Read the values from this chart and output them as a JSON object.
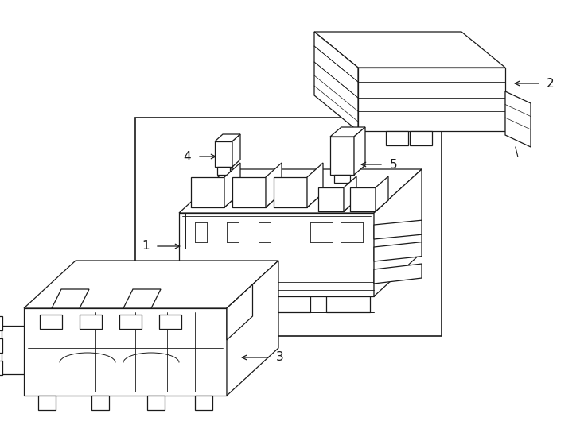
{
  "bg_color": "#ffffff",
  "line_color": "#1a1a1a",
  "lw": 0.9,
  "fig_width": 7.34,
  "fig_height": 5.4,
  "dpi": 100
}
